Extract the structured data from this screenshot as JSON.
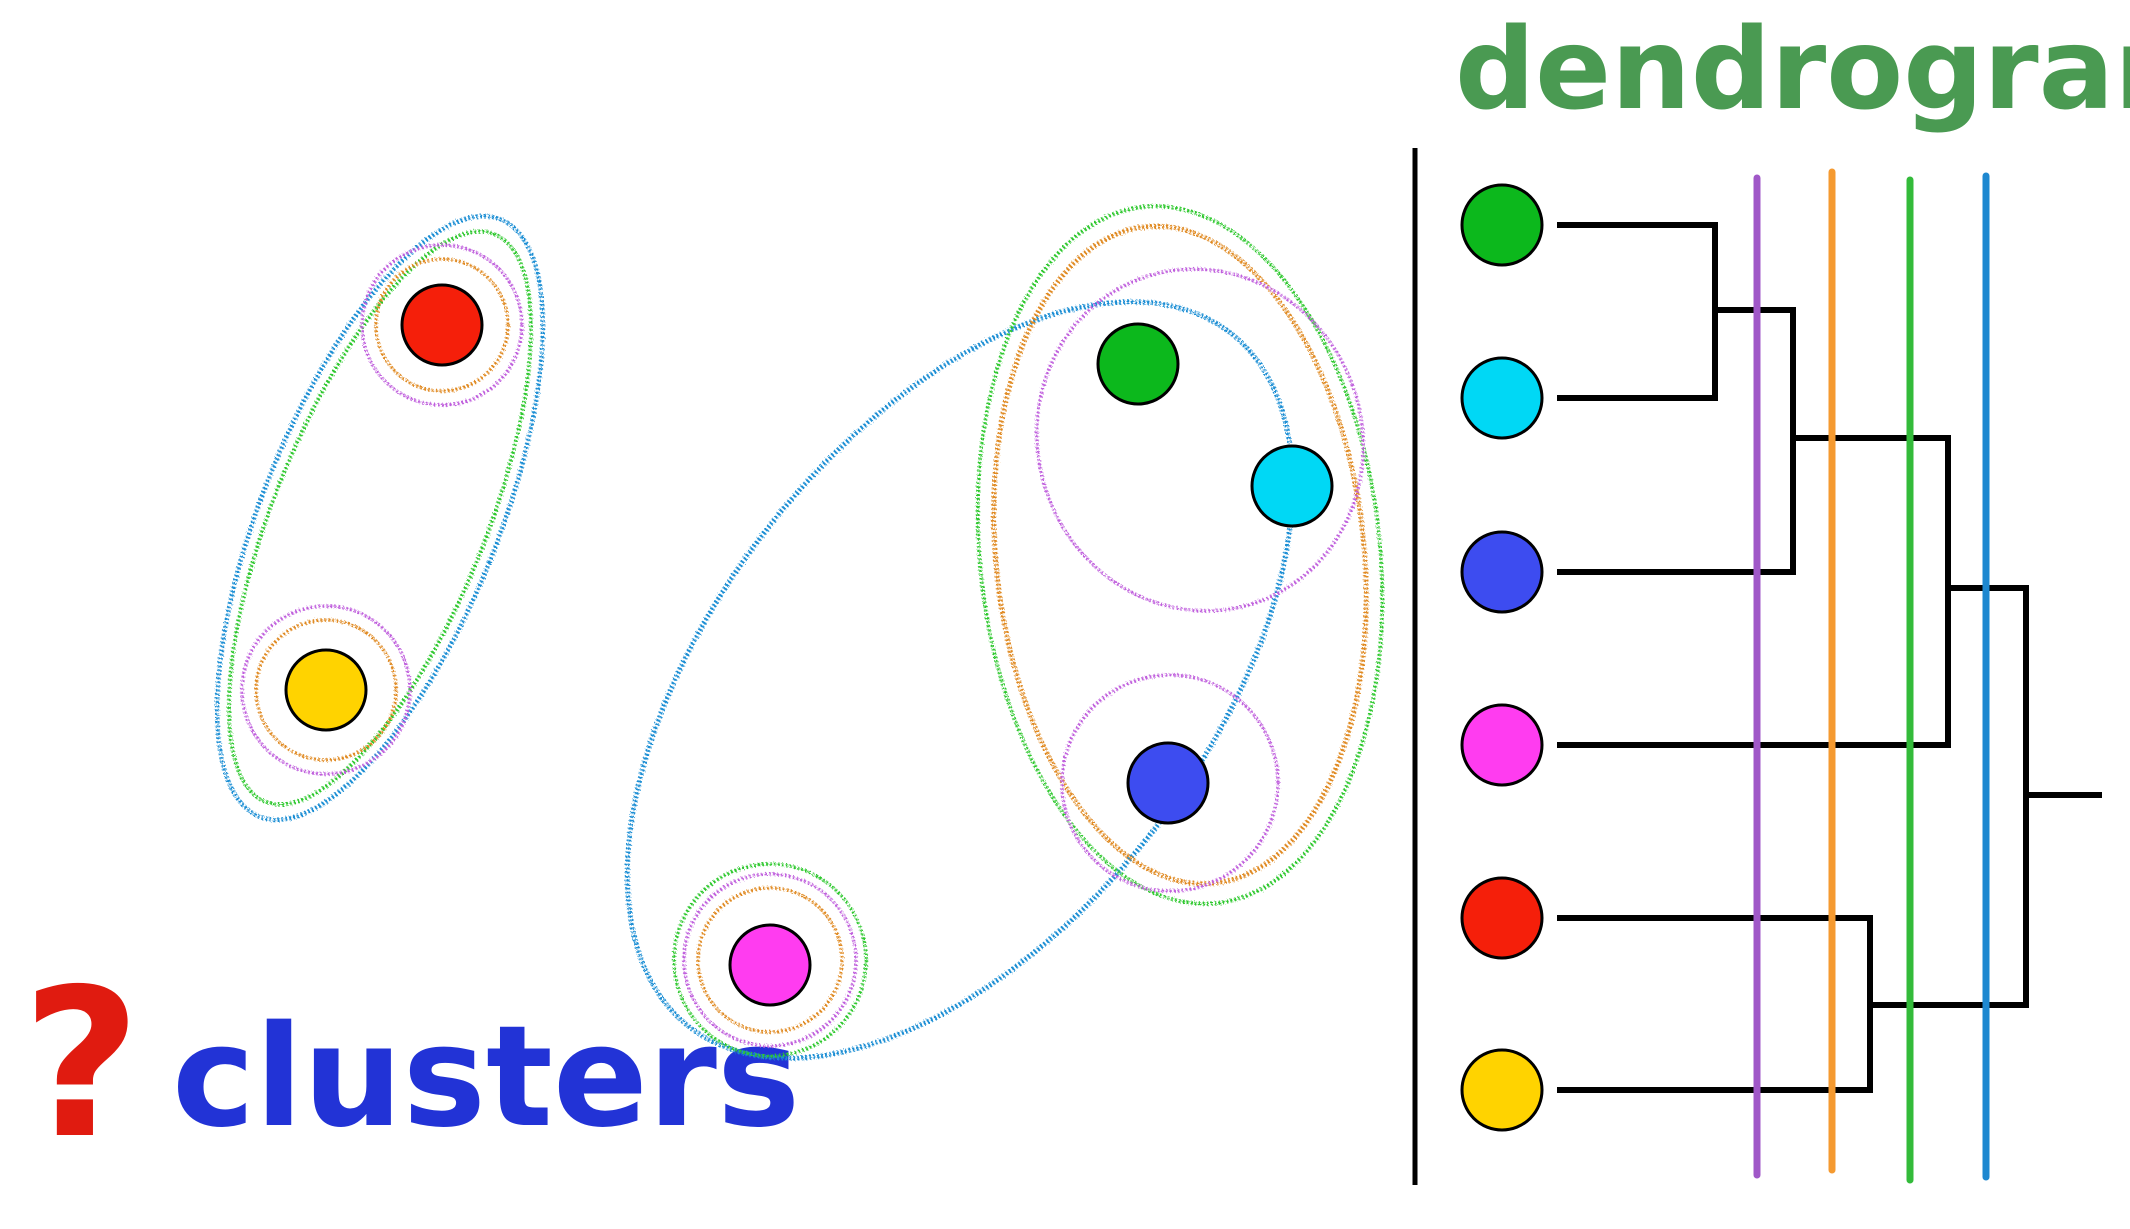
{
  "title": "dendrogram",
  "caption_mark": "?",
  "caption_word": "clusters",
  "colors": {
    "title": "#4a9a52",
    "caption_mark": "#e01b10",
    "caption_word": "#2233d6",
    "point_green": "#0cb81c",
    "point_cyan": "#00d8f5",
    "point_blue": "#3d4cf0",
    "point_magenta": "#ff3cf0",
    "point_red": "#f51f0a",
    "point_yellow": "#ffd300",
    "ring_orange": "#e08a22",
    "ring_purple": "#c060dd",
    "ring_green": "#2ec82e",
    "ring_blue": "#1a8ed4",
    "cut_purple": "#a058c8",
    "cut_orange": "#f59a30",
    "cut_green": "#33bb3a",
    "cut_blue": "#1e88d0",
    "tree": "#000000"
  },
  "points": [
    "green",
    "cyan",
    "blue",
    "magenta",
    "red",
    "yellow"
  ],
  "cut_lines": [
    "purple",
    "orange",
    "green",
    "blue"
  ]
}
